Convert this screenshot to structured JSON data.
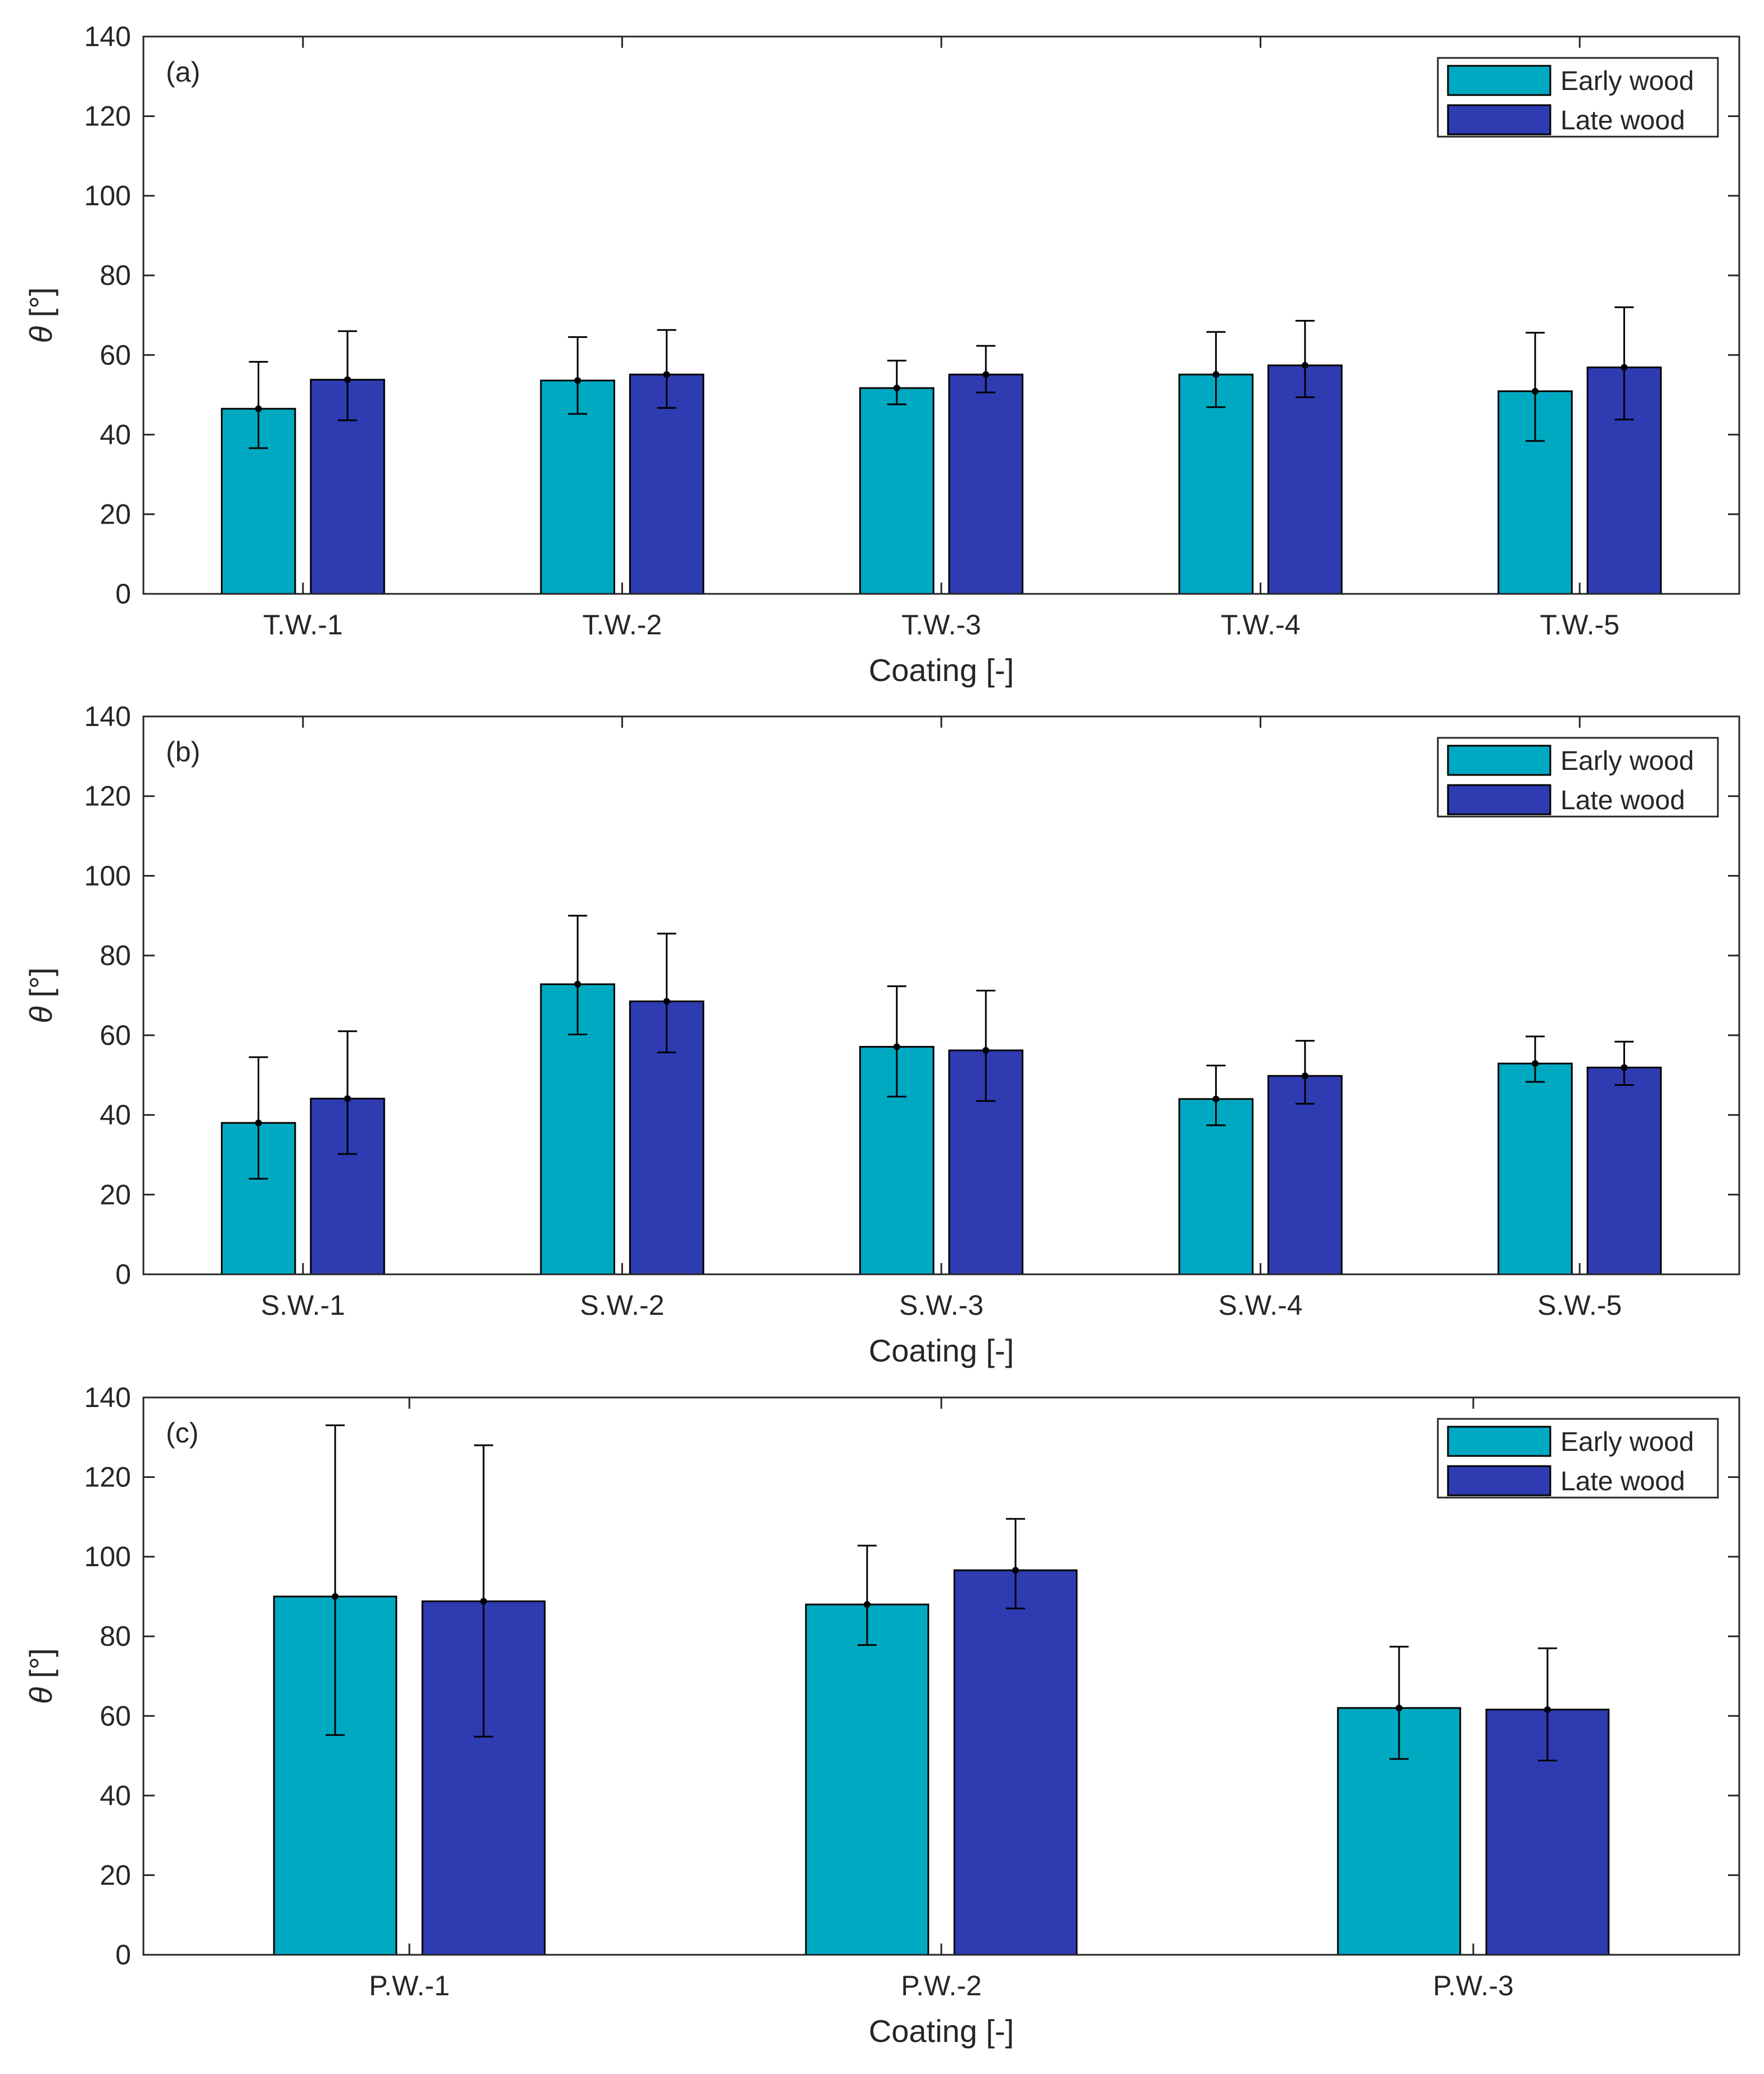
{
  "colors": {
    "early_wood": "#00a9c2",
    "late_wood": "#2e3bb1",
    "axis": "#262626",
    "error_bar": "#000000"
  },
  "chart_data": [
    {
      "type": "bar",
      "panel_label": "(a)",
      "xlabel": "Coating [-]",
      "ylabel_symbol": "θ",
      "ylabel_unit": " [°]",
      "ylim": [
        0,
        140
      ],
      "yticks": [
        0,
        20,
        40,
        60,
        80,
        100,
        120,
        140
      ],
      "legend_position": "top-right",
      "categories": [
        "T.W.-1",
        "T.W.-2",
        "T.W.-3",
        "T.W.-4",
        "T.W.-5"
      ],
      "series": [
        {
          "name": "Early wood",
          "values": [
            46.5,
            53.6,
            51.7,
            55.1,
            50.9
          ],
          "err_low": [
            36.6,
            45.2,
            47.6,
            46.9,
            38.4
          ],
          "err_high": [
            58.3,
            64.5,
            58.6,
            65.8,
            65.6
          ]
        },
        {
          "name": "Late wood",
          "values": [
            53.8,
            55.1,
            55.1,
            57.4,
            56.9
          ],
          "err_low": [
            43.6,
            46.7,
            50.6,
            49.4,
            43.8
          ],
          "err_high": [
            66.0,
            66.3,
            62.3,
            68.6,
            72.0
          ]
        }
      ]
    },
    {
      "type": "bar",
      "panel_label": "(b)",
      "xlabel": "Coating [-]",
      "ylabel_symbol": "θ",
      "ylabel_unit": " [°]",
      "ylim": [
        0,
        140
      ],
      "yticks": [
        0,
        20,
        40,
        60,
        80,
        100,
        120,
        140
      ],
      "legend_position": "top-right",
      "categories": [
        "S.W.-1",
        "S.W.-2",
        "S.W.-3",
        "S.W.-4",
        "S.W.-5"
      ],
      "series": [
        {
          "name": "Early wood",
          "values": [
            38.0,
            72.8,
            57.1,
            44.0,
            52.9
          ],
          "err_low": [
            24.0,
            60.2,
            44.6,
            37.4,
            48.3
          ],
          "err_high": [
            54.5,
            90.0,
            72.3,
            52.4,
            59.7
          ]
        },
        {
          "name": "Late wood",
          "values": [
            44.1,
            68.5,
            56.2,
            49.8,
            51.9
          ],
          "err_low": [
            30.2,
            55.7,
            43.5,
            42.8,
            47.5
          ],
          "err_high": [
            61.0,
            85.5,
            71.2,
            58.6,
            58.4
          ]
        }
      ]
    },
    {
      "type": "bar",
      "panel_label": "(c)",
      "xlabel": "Coating [-]",
      "ylabel_symbol": "θ",
      "ylabel_unit": " [°]",
      "ylim": [
        0,
        140
      ],
      "yticks": [
        0,
        20,
        40,
        60,
        80,
        100,
        120,
        140
      ],
      "legend_position": "top-right",
      "categories": [
        "P.W.-1",
        "P.W.-2",
        "P.W.-3"
      ],
      "series": [
        {
          "name": "Early wood",
          "values": [
            90.0,
            88.0,
            62.0
          ],
          "err_low": [
            55.2,
            77.8,
            49.2
          ],
          "err_high": [
            133.0,
            102.8,
            77.4
          ]
        },
        {
          "name": "Late wood",
          "values": [
            88.8,
            96.6,
            61.6
          ],
          "err_low": [
            54.8,
            87.0,
            48.8
          ],
          "err_high": [
            128.0,
            109.5,
            77.0
          ]
        }
      ]
    }
  ]
}
